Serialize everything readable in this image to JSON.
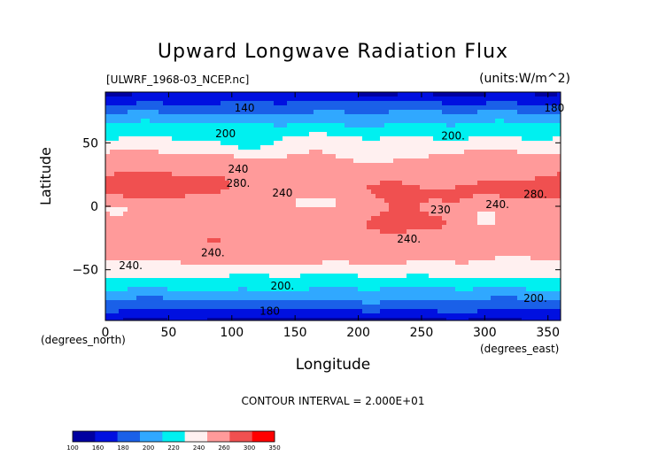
{
  "chart_data": {
    "type": "heatmap",
    "title": "Upward Longwave Radiation Flux",
    "source_label": "[ULWRF_1968-03_NCEP.nc]",
    "units_label": "(units:W/m^2)",
    "xlabel": "Longitude",
    "ylabel": "Latitude",
    "x_units_label": "(degrees_east)",
    "y_units_label": "(degrees_north)",
    "xlim": [
      0,
      360
    ],
    "ylim": [
      -90,
      90
    ],
    "x_ticks": [
      0,
      50,
      100,
      150,
      200,
      250,
      300,
      350
    ],
    "y_ticks": [
      -50,
      0,
      50
    ],
    "contour_interval_label": "CONTOUR INTERVAL = 2.000E+01",
    "colorbar": {
      "levels": [
        "100",
        "160",
        "180",
        "200",
        "220",
        "240",
        "260",
        "300",
        "350"
      ],
      "colors": [
        "#0000a0",
        "#0010e0",
        "#1a60e8",
        "#30a8ff",
        "#00f0f0",
        "#fff0f0",
        "#ff9a9a",
        "#f05050",
        "#ff0000"
      ]
    },
    "contour_labels": [
      {
        "text": "200.",
        "lon": 275,
        "lat": 56
      },
      {
        "text": "200",
        "lon": 95,
        "lat": 58
      },
      {
        "text": "180",
        "lon": 355,
        "lat": 78
      },
      {
        "text": "240",
        "lon": 105,
        "lat": 30
      },
      {
        "text": "280.",
        "lon": 105,
        "lat": 19
      },
      {
        "text": "240",
        "lon": 140,
        "lat": 11
      },
      {
        "text": "280.",
        "lon": 340,
        "lat": 10
      },
      {
        "text": "240.",
        "lon": 310,
        "lat": 2
      },
      {
        "text": "230",
        "lon": 265,
        "lat": -2
      },
      {
        "text": "240.",
        "lon": 240,
        "lat": -25
      },
      {
        "text": "240.",
        "lon": 85,
        "lat": -36
      },
      {
        "text": "240.",
        "lon": 20,
        "lat": -46
      },
      {
        "text": "200.",
        "lon": 140,
        "lat": -62
      },
      {
        "text": "200.",
        "lon": 340,
        "lat": -72
      },
      {
        "text": "180",
        "lon": 130,
        "lat": -82
      },
      {
        "text": "140",
        "lon": 110,
        "lat": 78
      }
    ]
  }
}
